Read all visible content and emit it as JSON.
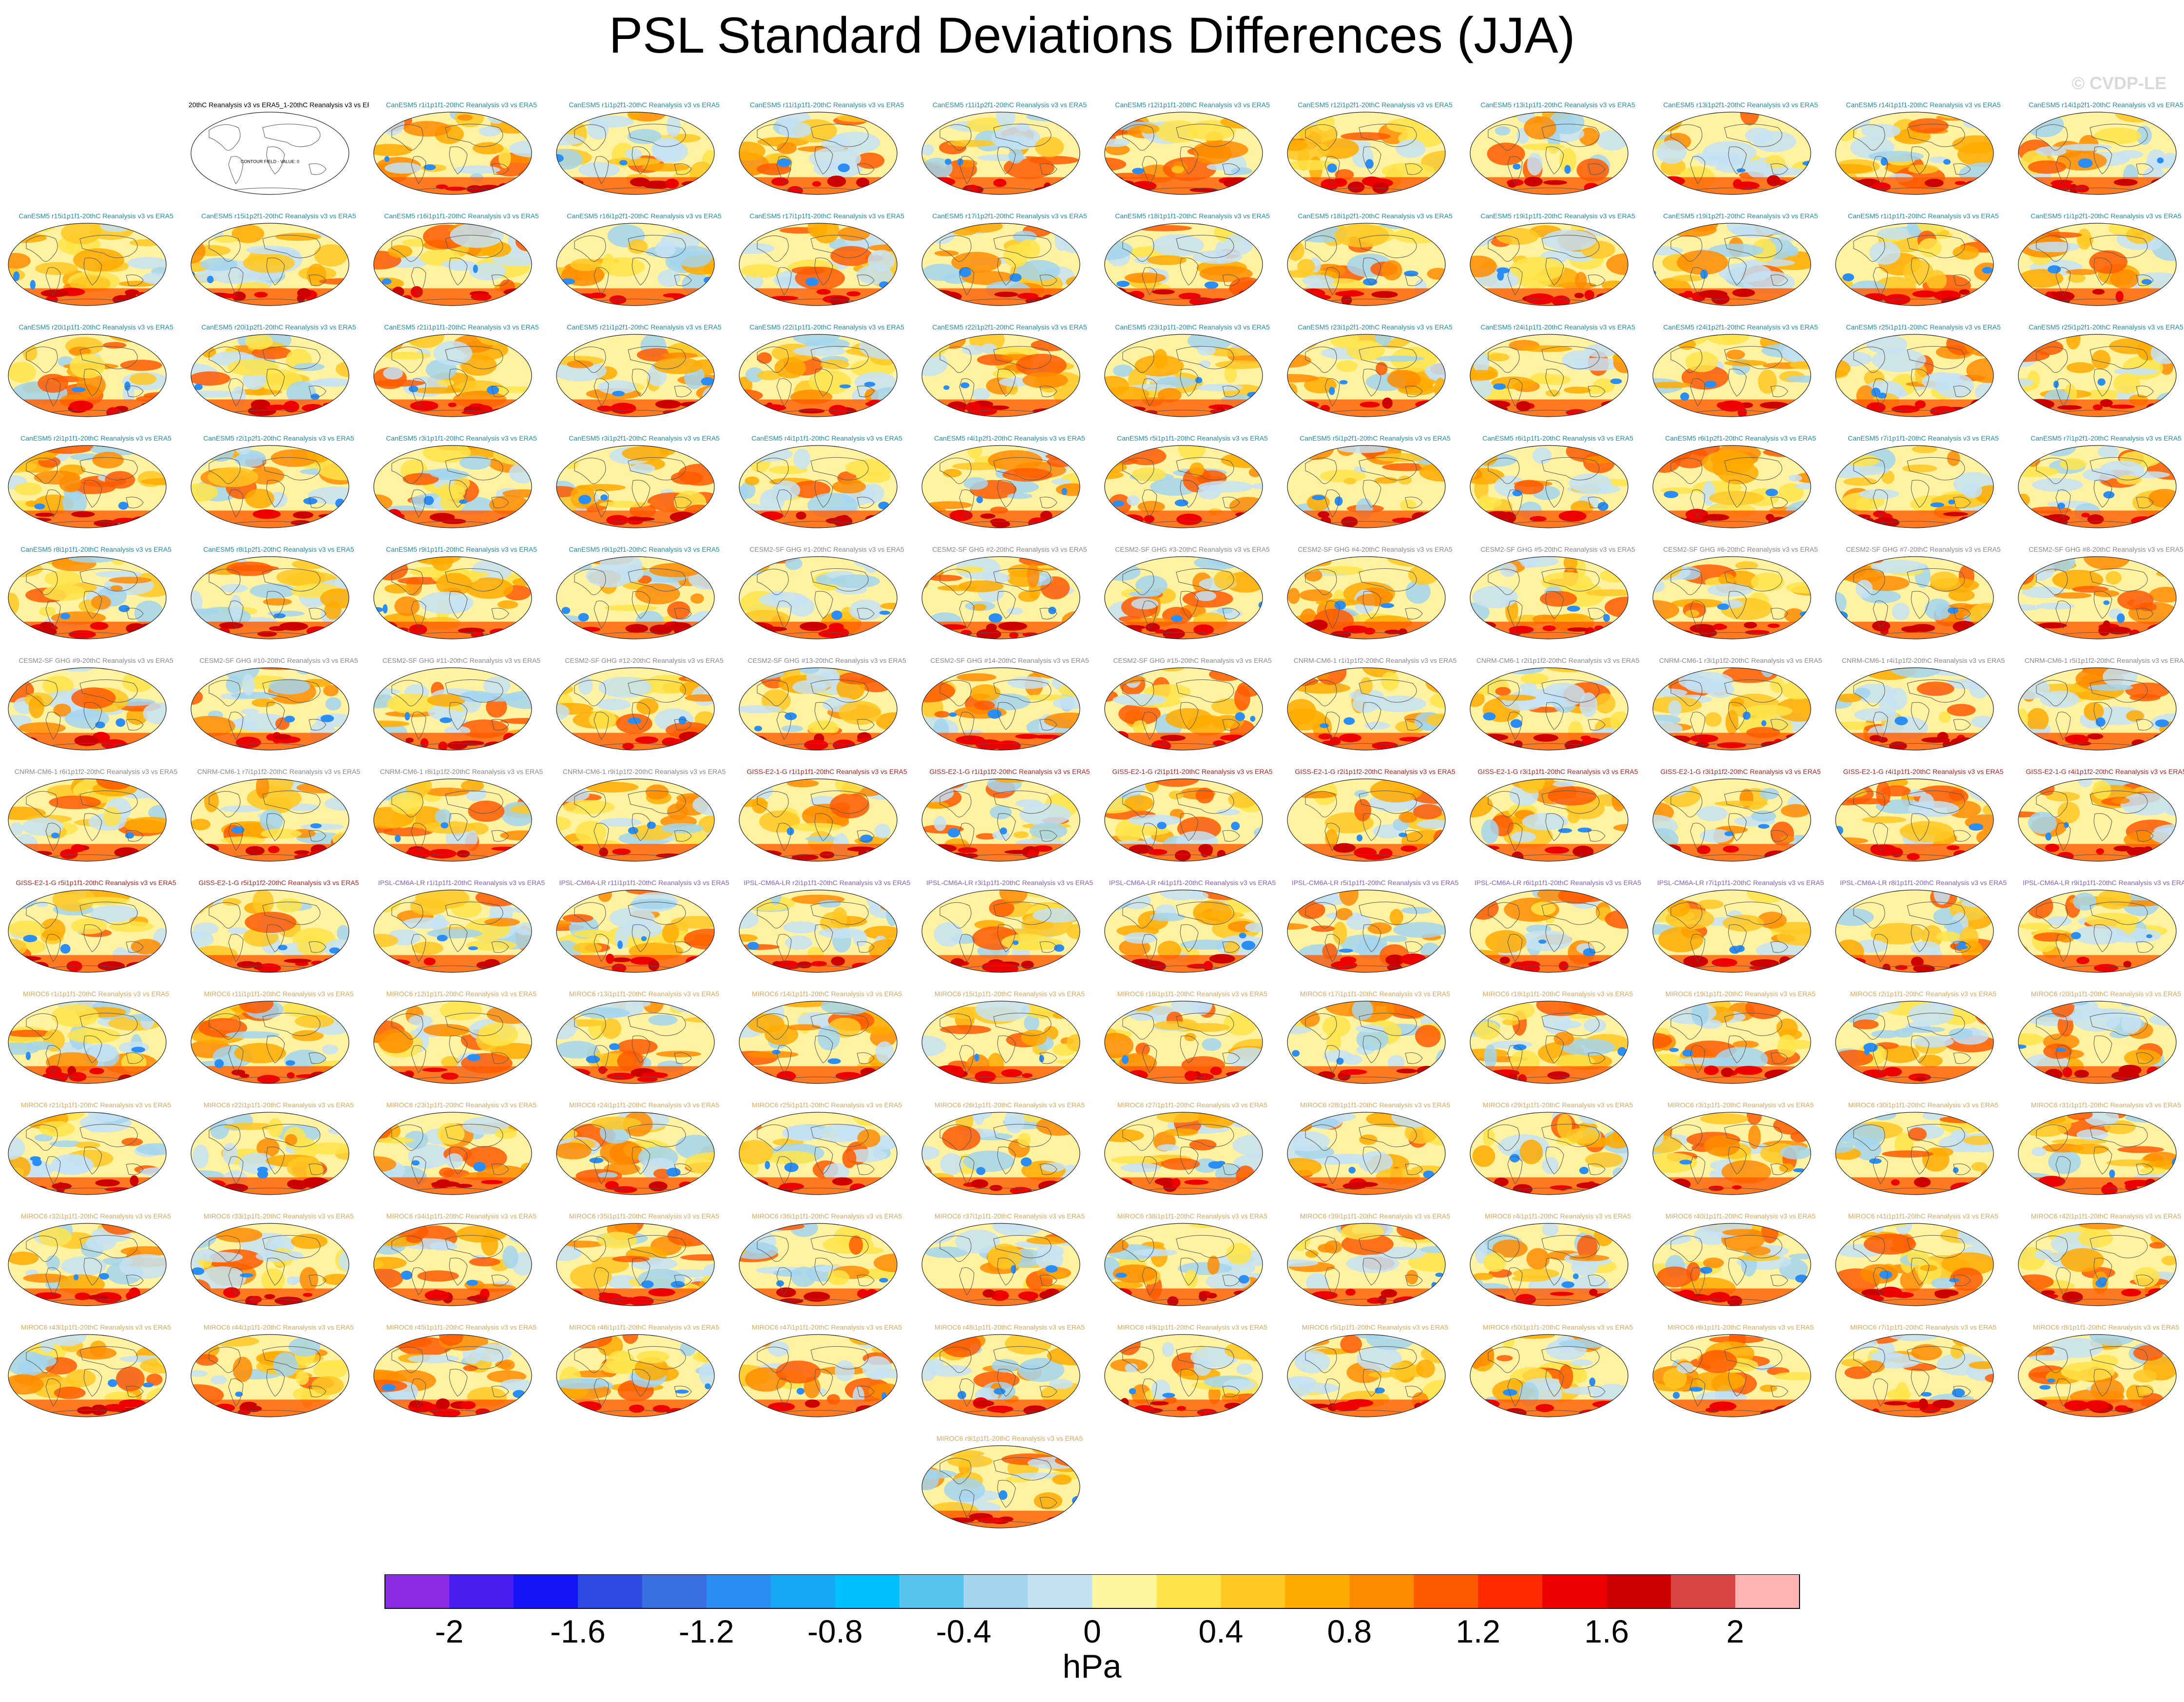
{
  "page": {
    "title": "PSL Standard Deviations Differences (JJA)",
    "copyright": "© CVDP-LE",
    "unit": "hPa"
  },
  "colors": {
    "model_CanESM5": "#1e8fa6",
    "model_CESM2": "#8a8a8a",
    "model_CNRM": "#8a8a8a",
    "model_GISS": "#b22222",
    "model_IPSL": "#8a5fbf",
    "model_MIROC": "#d9a95b",
    "reference": "#000000"
  },
  "chart_data": {
    "type": "heatmap",
    "title": "PSL Standard Deviations Differences (JJA)",
    "projection": "global map (Robinson-like), land outlines",
    "colorbar": {
      "label": "hPa",
      "levels": [
        -2.2,
        -2.0,
        -1.8,
        -1.6,
        -1.4,
        -1.2,
        -1.0,
        -0.8,
        -0.6,
        -0.4,
        -0.2,
        0,
        0.2,
        0.4,
        0.6,
        0.8,
        1.0,
        1.2,
        1.4,
        1.6,
        1.8,
        2.0,
        2.2
      ],
      "tick_labels": [
        "-2",
        "-1.6",
        "-1.2",
        "-0.8",
        "-0.4",
        "0",
        "0.4",
        "0.8",
        "1.2",
        "1.6",
        "2"
      ],
      "colors": [
        "#8a2be2",
        "#4b1cf0",
        "#1414f5",
        "#2d4be3",
        "#3a6fe0",
        "#2a8ef5",
        "#18a7f5",
        "#00bfff",
        "#59c4f0",
        "#a3d5ee",
        "#c4e2f4",
        "#fff7a0",
        "#ffe44a",
        "#ffc823",
        "#ffaa00",
        "#ff8c00",
        "#ff5a00",
        "#ff2a00",
        "#ee0000",
        "#cc0000",
        "#d94545",
        "#ffb3b3"
      ]
    },
    "reference_panel": {
      "title": "20thC Reanalysis v3 vs ERA5_1-20thC Reanalysis v3 vs ERA5",
      "note": "CONTOUR FIELD - VALUE: 0"
    },
    "panels": [
      {
        "title": "CanESM5 r1i1p1f1-20thC Reanalysis v3 vs ERA5",
        "model": "CanESM5"
      },
      {
        "title": "CanESM5 r1i1p2f1-20thC Reanalysis v3 vs ERA5",
        "model": "CanESM5"
      },
      {
        "title": "CanESM5 r11i1p1f1-20thC Reanalysis v3 vs ERA5",
        "model": "CanESM5"
      },
      {
        "title": "CanESM5 r11i1p2f1-20thC Reanalysis v3 vs ERA5",
        "model": "CanESM5"
      },
      {
        "title": "CanESM5 r12i1p1f1-20thC Reanalysis v3 vs ERA5",
        "model": "CanESM5"
      },
      {
        "title": "CanESM5 r12i1p2f1-20thC Reanalysis v3 vs ERA5",
        "model": "CanESM5"
      },
      {
        "title": "CanESM5 r13i1p1f1-20thC Reanalysis v3 vs ERA5",
        "model": "CanESM5"
      },
      {
        "title": "CanESM5 r13i1p2f1-20thC Reanalysis v3 vs ERA5",
        "model": "CanESM5"
      },
      {
        "title": "CanESM5 r14i1p1f1-20thC Reanalysis v3 vs ERA5",
        "model": "CanESM5"
      },
      {
        "title": "CanESM5 r14i1p2f1-20thC Reanalysis v3 vs ERA5",
        "model": "CanESM5"
      },
      {
        "title": "CanESM5 r15i1p1f1-20thC Reanalysis v3 vs ERA5",
        "model": "CanESM5"
      },
      {
        "title": "CanESM5 r15i1p2f1-20thC Reanalysis v3 vs ERA5",
        "model": "CanESM5"
      },
      {
        "title": "CanESM5 r16i1p1f1-20thC Reanalysis v3 vs ERA5",
        "model": "CanESM5"
      },
      {
        "title": "CanESM5 r16i1p2f1-20thC Reanalysis v3 vs ERA5",
        "model": "CanESM5"
      },
      {
        "title": "CanESM5 r17i1p1f1-20thC Reanalysis v3 vs ERA5",
        "model": "CanESM5"
      },
      {
        "title": "CanESM5 r17i1p2f1-20thC Reanalysis v3 vs ERA5",
        "model": "CanESM5"
      },
      {
        "title": "CanESM5 r18i1p1f1-20thC Reanalysis v3 vs ERA5",
        "model": "CanESM5"
      },
      {
        "title": "CanESM5 r18i1p2f1-20thC Reanalysis v3 vs ERA5",
        "model": "CanESM5"
      },
      {
        "title": "CanESM5 r19i1p1f1-20thC Reanalysis v3 vs ERA5",
        "model": "CanESM5"
      },
      {
        "title": "CanESM5 r19i1p2f1-20thC Reanalysis v3 vs ERA5",
        "model": "CanESM5"
      },
      {
        "title": "CanESM5 r1i1p1f1-20thC Reanalysis v3 vs ERA5",
        "model": "CanESM5"
      },
      {
        "title": "CanESM5 r1i1p2f1-20thC Reanalysis v3 vs ERA5",
        "model": "CanESM5"
      },
      {
        "title": "CanESM5 r20i1p1f1-20thC Reanalysis v3 vs ERA5",
        "model": "CanESM5"
      },
      {
        "title": "CanESM5 r20i1p2f1-20thC Reanalysis v3 vs ERA5",
        "model": "CanESM5"
      },
      {
        "title": "CanESM5 r21i1p1f1-20thC Reanalysis v3 vs ERA5",
        "model": "CanESM5"
      },
      {
        "title": "CanESM5 r21i1p2f1-20thC Reanalysis v3 vs ERA5",
        "model": "CanESM5"
      },
      {
        "title": "CanESM5 r22i1p1f1-20thC Reanalysis v3 vs ERA5",
        "model": "CanESM5"
      },
      {
        "title": "CanESM5 r22i1p2f1-20thC Reanalysis v3 vs ERA5",
        "model": "CanESM5"
      },
      {
        "title": "CanESM5 r23i1p1f1-20thC Reanalysis v3 vs ERA5",
        "model": "CanESM5"
      },
      {
        "title": "CanESM5 r23i1p2f1-20thC Reanalysis v3 vs ERA5",
        "model": "CanESM5"
      },
      {
        "title": "CanESM5 r24i1p1f1-20thC Reanalysis v3 vs ERA5",
        "model": "CanESM5"
      },
      {
        "title": "CanESM5 r24i1p2f1-20thC Reanalysis v3 vs ERA5",
        "model": "CanESM5"
      },
      {
        "title": "CanESM5 r25i1p1f1-20thC Reanalysis v3 vs ERA5",
        "model": "CanESM5"
      },
      {
        "title": "CanESM5 r25i1p2f1-20thC Reanalysis v3 vs ERA5",
        "model": "CanESM5"
      },
      {
        "title": "CanESM5 r2i1p1f1-20thC Reanalysis v3 vs ERA5",
        "model": "CanESM5"
      },
      {
        "title": "CanESM5 r2i1p2f1-20thC Reanalysis v3 vs ERA5",
        "model": "CanESM5"
      },
      {
        "title": "CanESM5 r3i1p1f1-20thC Reanalysis v3 vs ERA5",
        "model": "CanESM5"
      },
      {
        "title": "CanESM5 r3i1p2f1-20thC Reanalysis v3 vs ERA5",
        "model": "CanESM5"
      },
      {
        "title": "CanESM5 r4i1p1f1-20thC Reanalysis v3 vs ERA5",
        "model": "CanESM5"
      },
      {
        "title": "CanESM5 r4i1p2f1-20thC Reanalysis v3 vs ERA5",
        "model": "CanESM5"
      },
      {
        "title": "CanESM5 r5i1p1f1-20thC Reanalysis v3 vs ERA5",
        "model": "CanESM5"
      },
      {
        "title": "CanESM5 r5i1p2f1-20thC Reanalysis v3 vs ERA5",
        "model": "CanESM5"
      },
      {
        "title": "CanESM5 r6i1p1f1-20thC Reanalysis v3 vs ERA5",
        "model": "CanESM5"
      },
      {
        "title": "CanESM5 r6i1p2f1-20thC Reanalysis v3 vs ERA5",
        "model": "CanESM5"
      },
      {
        "title": "CanESM5 r7i1p1f1-20thC Reanalysis v3 vs ERA5",
        "model": "CanESM5"
      },
      {
        "title": "CanESM5 r7i1p2f1-20thC Reanalysis v3 vs ERA5",
        "model": "CanESM5"
      },
      {
        "title": "CanESM5 r8i1p1f1-20thC Reanalysis v3 vs ERA5",
        "model": "CanESM5"
      },
      {
        "title": "CanESM5 r8i1p2f1-20thC Reanalysis v3 vs ERA5",
        "model": "CanESM5"
      },
      {
        "title": "CanESM5 r9i1p1f1-20thC Reanalysis v3 vs ERA5",
        "model": "CanESM5"
      },
      {
        "title": "CanESM5 r9i1p2f1-20thC Reanalysis v3 vs ERA5",
        "model": "CanESM5"
      },
      {
        "title": "CESM2-SF GHG #1-20thC Reanalysis v3 vs ERA5",
        "model": "CESM2"
      },
      {
        "title": "CESM2-SF GHG #2-20thC Reanalysis v3 vs ERA5",
        "model": "CESM2"
      },
      {
        "title": "CESM2-SF GHG #3-20thC Reanalysis v3 vs ERA5",
        "model": "CESM2"
      },
      {
        "title": "CESM2-SF GHG #4-20thC Reanalysis v3 vs ERA5",
        "model": "CESM2"
      },
      {
        "title": "CESM2-SF GHG #5-20thC Reanalysis v3 vs ERA5",
        "model": "CESM2"
      },
      {
        "title": "CESM2-SF GHG #6-20thC Reanalysis v3 vs ERA5",
        "model": "CESM2"
      },
      {
        "title": "CESM2-SF GHG #7-20thC Reanalysis v3 vs ERA5",
        "model": "CESM2"
      },
      {
        "title": "CESM2-SF GHG #8-20thC Reanalysis v3 vs ERA5",
        "model": "CESM2"
      },
      {
        "title": "CESM2-SF GHG #9-20thC Reanalysis v3 vs ERA5",
        "model": "CESM2"
      },
      {
        "title": "CESM2-SF GHG #10-20thC Reanalysis v3 vs ERA5",
        "model": "CESM2"
      },
      {
        "title": "CESM2-SF GHG #11-20thC Reanalysis v3 vs ERA5",
        "model": "CESM2"
      },
      {
        "title": "CESM2-SF GHG #12-20thC Reanalysis v3 vs ERA5",
        "model": "CESM2"
      },
      {
        "title": "CESM2-SF GHG #13-20thC Reanalysis v3 vs ERA5",
        "model": "CESM2"
      },
      {
        "title": "CESM2-SF GHG #14-20thC Reanalysis v3 vs ERA5",
        "model": "CESM2"
      },
      {
        "title": "CESM2-SF GHG #15-20thC Reanalysis v3 vs ERA5",
        "model": "CESM2"
      },
      {
        "title": "CNRM-CM6-1 r1i1p1f2-20thC Reanalysis v3 vs ERA5",
        "model": "CNRM"
      },
      {
        "title": "CNRM-CM6-1 r2i1p1f2-20thC Reanalysis v3 vs ERA5",
        "model": "CNRM"
      },
      {
        "title": "CNRM-CM6-1 r3i1p1f2-20thC Reanalysis v3 vs ERA5",
        "model": "CNRM"
      },
      {
        "title": "CNRM-CM6-1 r4i1p1f2-20thC Reanalysis v3 vs ERA5",
        "model": "CNRM"
      },
      {
        "title": "CNRM-CM6-1 r5i1p1f2-20thC Reanalysis v3 vs ERA5",
        "model": "CNRM"
      },
      {
        "title": "CNRM-CM6-1 r6i1p1f2-20thC Reanalysis v3 vs ERA5",
        "model": "CNRM"
      },
      {
        "title": "CNRM-CM6-1 r7i1p1f2-20thC Reanalysis v3 vs ERA5",
        "model": "CNRM"
      },
      {
        "title": "CNRM-CM6-1 r8i1p1f2-20thC Reanalysis v3 vs ERA5",
        "model": "CNRM"
      },
      {
        "title": "CNRM-CM6-1 r9i1p1f2-20thC Reanalysis v3 vs ERA5",
        "model": "CNRM"
      },
      {
        "title": "GISS-E2-1-G r1i1p1f1-20thC Reanalysis v3 vs ERA5",
        "model": "GISS"
      },
      {
        "title": "GISS-E2-1-G r1i1p1f2-20thC Reanalysis v3 vs ERA5",
        "model": "GISS"
      },
      {
        "title": "GISS-E2-1-G r2i1p1f1-20thC Reanalysis v3 vs ERA5",
        "model": "GISS"
      },
      {
        "title": "GISS-E2-1-G r2i1p1f2-20thC Reanalysis v3 vs ERA5",
        "model": "GISS"
      },
      {
        "title": "GISS-E2-1-G r3i1p1f1-20thC Reanalysis v3 vs ERA5",
        "model": "GISS"
      },
      {
        "title": "GISS-E2-1-G r3i1p1f2-20thC Reanalysis v3 vs ERA5",
        "model": "GISS"
      },
      {
        "title": "GISS-E2-1-G r4i1p1f1-20thC Reanalysis v3 vs ERA5",
        "model": "GISS"
      },
      {
        "title": "GISS-E2-1-G r4i1p1f2-20thC Reanalysis v3 vs ERA5",
        "model": "GISS"
      },
      {
        "title": "GISS-E2-1-G r5i1p1f1-20thC Reanalysis v3 vs ERA5",
        "model": "GISS"
      },
      {
        "title": "GISS-E2-1-G r5i1p1f2-20thC Reanalysis v3 vs ERA5",
        "model": "GISS"
      },
      {
        "title": "IPSL-CM6A-LR r1i1p1f1-20thC Reanalysis v3 vs ERA5",
        "model": "IPSL"
      },
      {
        "title": "IPSL-CM6A-LR r11i1p1f1-20thC Reanalysis v3 vs ERA5",
        "model": "IPSL"
      },
      {
        "title": "IPSL-CM6A-LR r2i1p1f1-20thC Reanalysis v3 vs ERA5",
        "model": "IPSL"
      },
      {
        "title": "IPSL-CM6A-LR r3i1p1f1-20thC Reanalysis v3 vs ERA5",
        "model": "IPSL"
      },
      {
        "title": "IPSL-CM6A-LR r4i1p1f1-20thC Reanalysis v3 vs ERA5",
        "model": "IPSL"
      },
      {
        "title": "IPSL-CM6A-LR r5i1p1f1-20thC Reanalysis v3 vs ERA5",
        "model": "IPSL"
      },
      {
        "title": "IPSL-CM6A-LR r6i1p1f1-20thC Reanalysis v3 vs ERA5",
        "model": "IPSL"
      },
      {
        "title": "IPSL-CM6A-LR r7i1p1f1-20thC Reanalysis v3 vs ERA5",
        "model": "IPSL"
      },
      {
        "title": "IPSL-CM6A-LR r8i1p1f1-20thC Reanalysis v3 vs ERA5",
        "model": "IPSL"
      },
      {
        "title": "IPSL-CM6A-LR r9i1p1f1-20thC Reanalysis v3 vs ERA5",
        "model": "IPSL"
      },
      {
        "title": "MIROC6 r1i1p1f1-20thC Reanalysis v3 vs ERA5",
        "model": "MIROC"
      },
      {
        "title": "MIROC6 r11i1p1f1-20thC Reanalysis v3 vs ERA5",
        "model": "MIROC"
      },
      {
        "title": "MIROC6 r12i1p1f1-20thC Reanalysis v3 vs ERA5",
        "model": "MIROC"
      },
      {
        "title": "MIROC6 r13i1p1f1-20thC Reanalysis v3 vs ERA5",
        "model": "MIROC"
      },
      {
        "title": "MIROC6 r14i1p1f1-20thC Reanalysis v3 vs ERA5",
        "model": "MIROC"
      },
      {
        "title": "MIROC6 r15i1p1f1-20thC Reanalysis v3 vs ERA5",
        "model": "MIROC"
      },
      {
        "title": "MIROC6 r16i1p1f1-20thC Reanalysis v3 vs ERA5",
        "model": "MIROC"
      },
      {
        "title": "MIROC6 r17i1p1f1-20thC Reanalysis v3 vs ERA5",
        "model": "MIROC"
      },
      {
        "title": "MIROC6 r18i1p1f1-20thC Reanalysis v3 vs ERA5",
        "model": "MIROC"
      },
      {
        "title": "MIROC6 r19i1p1f1-20thC Reanalysis v3 vs ERA5",
        "model": "MIROC"
      },
      {
        "title": "MIROC6 r2i1p1f1-20thC Reanalysis v3 vs ERA5",
        "model": "MIROC"
      },
      {
        "title": "MIROC6 r20i1p1f1-20thC Reanalysis v3 vs ERA5",
        "model": "MIROC"
      },
      {
        "title": "MIROC6 r21i1p1f1-20thC Reanalysis v3 vs ERA5",
        "model": "MIROC"
      },
      {
        "title": "MIROC6 r22i1p1f1-20thC Reanalysis v3 vs ERA5",
        "model": "MIROC"
      },
      {
        "title": "MIROC6 r23i1p1f1-20thC Reanalysis v3 vs ERA5",
        "model": "MIROC"
      },
      {
        "title": "MIROC6 r24i1p1f1-20thC Reanalysis v3 vs ERA5",
        "model": "MIROC"
      },
      {
        "title": "MIROC6 r25i1p1f1-20thC Reanalysis v3 vs ERA5",
        "model": "MIROC"
      },
      {
        "title": "MIROC6 r26i1p1f1-20thC Reanalysis v3 vs ERA5",
        "model": "MIROC"
      },
      {
        "title": "MIROC6 r27i1p1f1-20thC Reanalysis v3 vs ERA5",
        "model": "MIROC"
      },
      {
        "title": "MIROC6 r28i1p1f1-20thC Reanalysis v3 vs ERA5",
        "model": "MIROC"
      },
      {
        "title": "MIROC6 r29i1p1f1-20thC Reanalysis v3 vs ERA5",
        "model": "MIROC"
      },
      {
        "title": "MIROC6 r3i1p1f1-20thC Reanalysis v3 vs ERA5",
        "model": "MIROC"
      },
      {
        "title": "MIROC6 r30i1p1f1-20thC Reanalysis v3 vs ERA5",
        "model": "MIROC"
      },
      {
        "title": "MIROC6 r31i1p1f1-20thC Reanalysis v3 vs ERA5",
        "model": "MIROC"
      },
      {
        "title": "MIROC6 r32i1p1f1-20thC Reanalysis v3 vs ERA5",
        "model": "MIROC"
      },
      {
        "title": "MIROC6 r33i1p1f1-20thC Reanalysis v3 vs ERA5",
        "model": "MIROC"
      },
      {
        "title": "MIROC6 r34i1p1f1-20thC Reanalysis v3 vs ERA5",
        "model": "MIROC"
      },
      {
        "title": "MIROC6 r35i1p1f1-20thC Reanalysis v3 vs ERA5",
        "model": "MIROC"
      },
      {
        "title": "MIROC6 r36i1p1f1-20thC Reanalysis v3 vs ERA5",
        "model": "MIROC"
      },
      {
        "title": "MIROC6 r37i1p1f1-20thC Reanalysis v3 vs ERA5",
        "model": "MIROC"
      },
      {
        "title": "MIROC6 r38i1p1f1-20thC Reanalysis v3 vs ERA5",
        "model": "MIROC"
      },
      {
        "title": "MIROC6 r39i1p1f1-20thC Reanalysis v3 vs ERA5",
        "model": "MIROC"
      },
      {
        "title": "MIROC6 r4i1p1f1-20thC Reanalysis v3 vs ERA5",
        "model": "MIROC"
      },
      {
        "title": "MIROC6 r40i1p1f1-20thC Reanalysis v3 vs ERA5",
        "model": "MIROC"
      },
      {
        "title": "MIROC6 r41i1p1f1-20thC Reanalysis v3 vs ERA5",
        "model": "MIROC"
      },
      {
        "title": "MIROC6 r42i1p1f1-20thC Reanalysis v3 vs ERA5",
        "model": "MIROC"
      },
      {
        "title": "MIROC6 r43i1p1f1-20thC Reanalysis v3 vs ERA5",
        "model": "MIROC"
      },
      {
        "title": "MIROC6 r44i1p1f1-20thC Reanalysis v3 vs ERA5",
        "model": "MIROC"
      },
      {
        "title": "MIROC6 r45i1p1f1-20thC Reanalysis v3 vs ERA5",
        "model": "MIROC"
      },
      {
        "title": "MIROC6 r46i1p1f1-20thC Reanalysis v3 vs ERA5",
        "model": "MIROC"
      },
      {
        "title": "MIROC6 r47i1p1f1-20thC Reanalysis v3 vs ERA5",
        "model": "MIROC"
      },
      {
        "title": "MIROC6 r48i1p1f1-20thC Reanalysis v3 vs ERA5",
        "model": "MIROC"
      },
      {
        "title": "MIROC6 r49i1p1f1-20thC Reanalysis v3 vs ERA5",
        "model": "MIROC"
      },
      {
        "title": "MIROC6 r5i1p1f1-20thC Reanalysis v3 vs ERA5",
        "model": "MIROC"
      },
      {
        "title": "MIROC6 r50i1p1f1-20thC Reanalysis v3 vs ERA5",
        "model": "MIROC"
      },
      {
        "title": "MIROC6 r6i1p1f1-20thC Reanalysis v3 vs ERA5",
        "model": "MIROC"
      },
      {
        "title": "MIROC6 r7i1p1f1-20thC Reanalysis v3 vs ERA5",
        "model": "MIROC"
      },
      {
        "title": "MIROC6 r8i1p1f1-20thC Reanalysis v3 vs ERA5",
        "model": "MIROC"
      },
      {
        "title": "MIROC6 r9i1p1f1-20thC Reanalysis v3 vs ERA5",
        "model": "MIROC"
      }
    ]
  }
}
